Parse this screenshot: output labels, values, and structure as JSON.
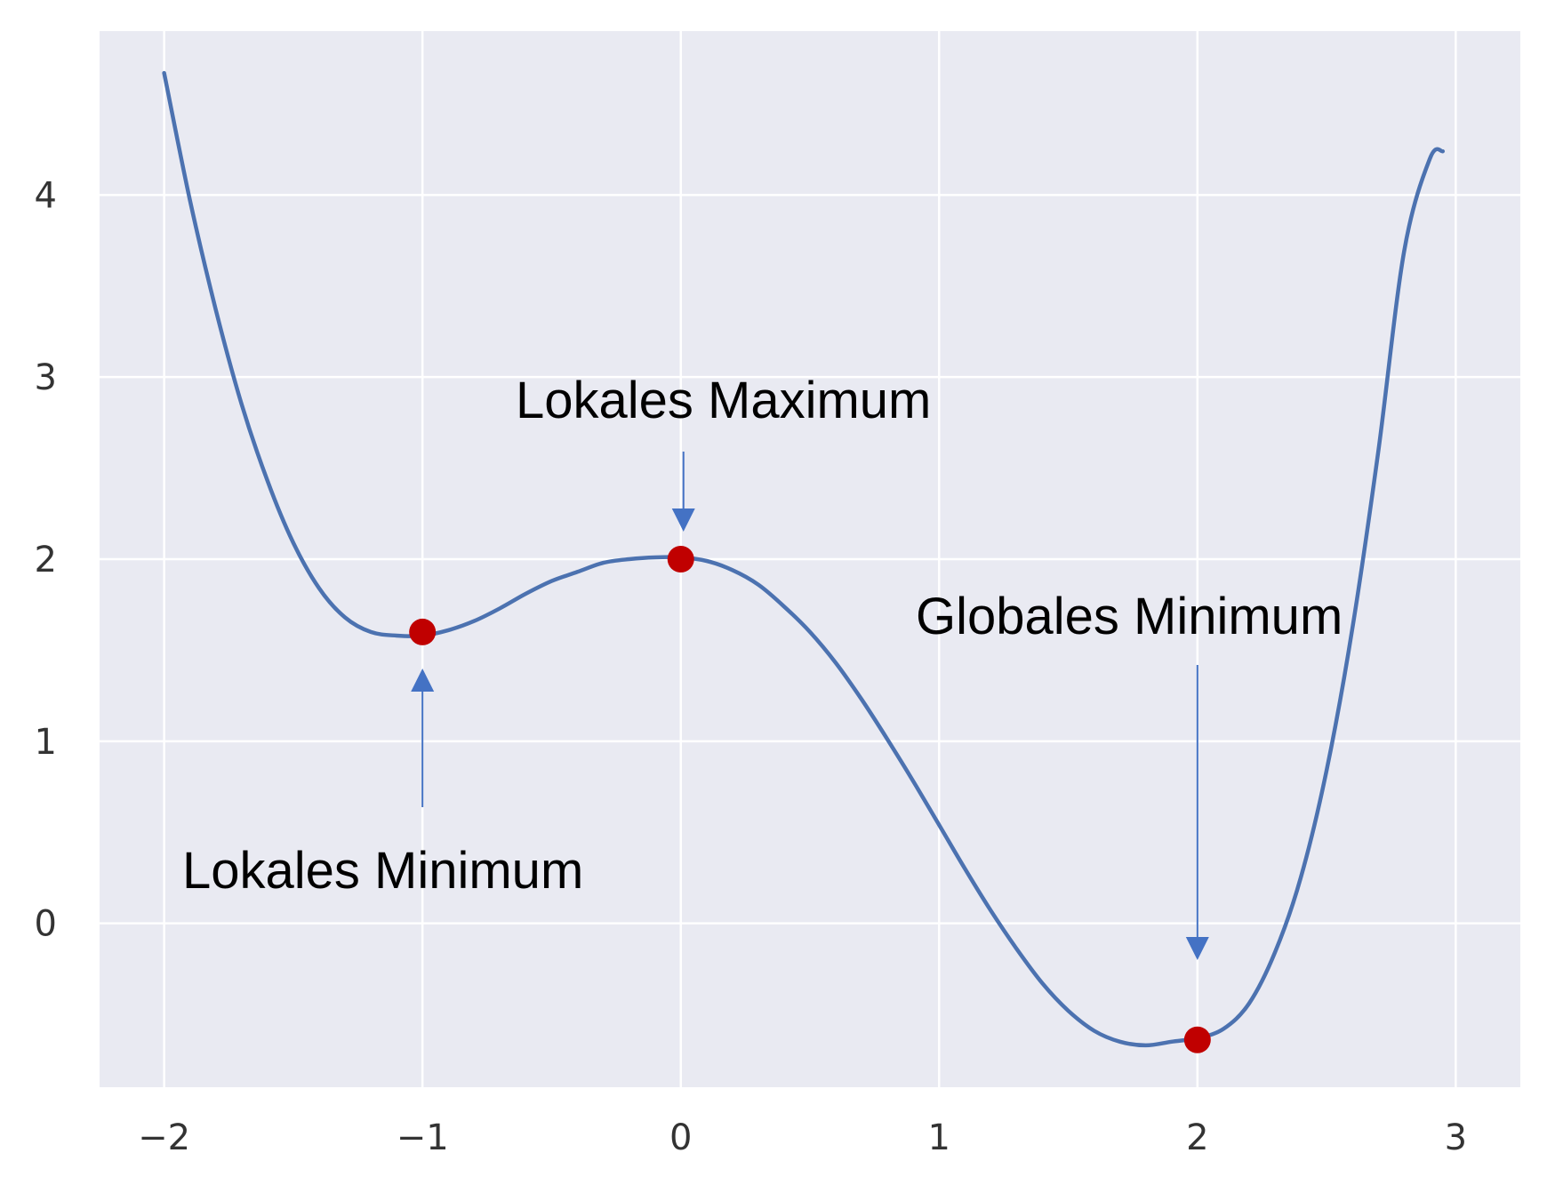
{
  "chart_data": {
    "type": "line",
    "title": "",
    "xlabel": "",
    "ylabel": "",
    "xlim": [
      -2.25,
      3.25
    ],
    "ylim": [
      -0.9,
      4.9
    ],
    "x_ticks": [
      -2,
      -1,
      0,
      1,
      2,
      3
    ],
    "x_tick_labels": [
      "−2",
      "−1",
      "0",
      "1",
      "2",
      "3"
    ],
    "y_ticks": [
      0,
      1,
      2,
      3,
      4
    ],
    "y_tick_labels": [
      "0",
      "1",
      "2",
      "3",
      "4"
    ],
    "grid": true,
    "legend": "none",
    "series": [
      {
        "x": [
          -2.0,
          -1.9,
          -1.8,
          -1.7,
          -1.6,
          -1.5,
          -1.4,
          -1.3,
          -1.2,
          -1.1,
          -1.0,
          -0.9,
          -0.8,
          -0.7,
          -0.6,
          -0.5,
          -0.4,
          -0.3,
          -0.2,
          -0.1,
          0.0,
          0.1,
          0.2,
          0.3,
          0.4,
          0.5,
          0.6,
          0.7,
          0.8,
          0.9,
          1.0,
          1.1,
          1.2,
          1.3,
          1.4,
          1.5,
          1.6,
          1.7,
          1.8,
          1.9,
          2.0,
          2.1,
          2.2,
          2.3,
          2.4,
          2.5,
          2.6,
          2.7,
          2.8,
          2.9,
          2.95
        ],
        "y": [
          4.67,
          3.97,
          3.37,
          2.85,
          2.43,
          2.09,
          1.84,
          1.68,
          1.6,
          1.58,
          1.58,
          1.61,
          1.66,
          1.73,
          1.81,
          1.88,
          1.93,
          1.98,
          2.0,
          2.01,
          2.01,
          1.99,
          1.94,
          1.86,
          1.74,
          1.6,
          1.43,
          1.23,
          1.01,
          0.78,
          0.54,
          0.3,
          0.07,
          -0.14,
          -0.33,
          -0.48,
          -0.59,
          -0.65,
          -0.67,
          -0.65,
          -0.63,
          -0.58,
          -0.44,
          -0.16,
          0.25,
          0.84,
          1.62,
          2.59,
          3.69,
          4.2,
          4.24
        ]
      }
    ],
    "highlight_points": [
      {
        "x": -1,
        "y": 1.6
      },
      {
        "x": 0,
        "y": 2.0
      },
      {
        "x": 2,
        "y": -0.64
      }
    ],
    "annotations": [
      {
        "text": "Lokales Maximum",
        "point_x": 0,
        "point_y": 2.0
      },
      {
        "text": "Lokales Minimum",
        "point_x": -1,
        "point_y": 1.6
      },
      {
        "text": "Globales Minimum",
        "point_x": 2,
        "point_y": -0.64
      }
    ],
    "colors": {
      "background": "#e9eaf2",
      "grid": "#ffffff",
      "line": "#4c72b0",
      "point": "#c00000",
      "arrow": "#4472c4"
    }
  }
}
